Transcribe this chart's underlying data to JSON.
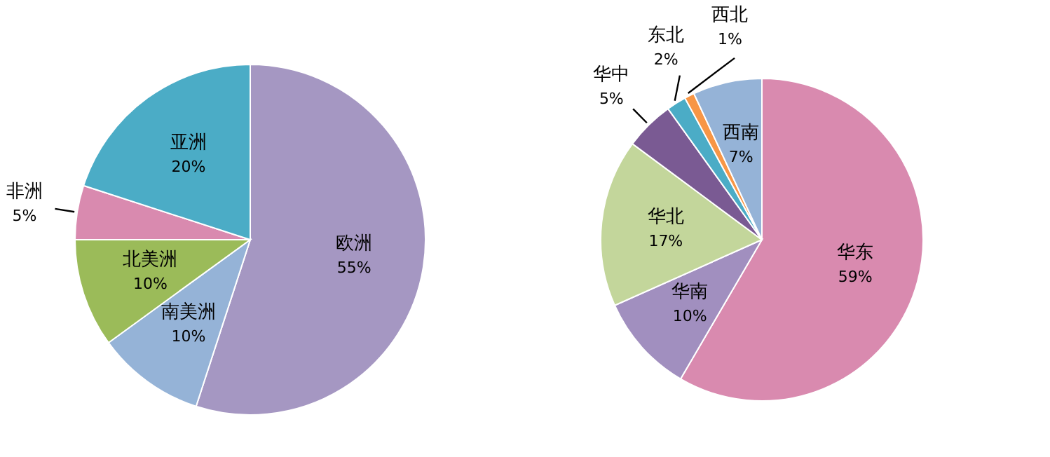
{
  "chart_data": [
    {
      "type": "pie",
      "categories": [
        "欧洲",
        "南美洲",
        "北美洲",
        "非洲",
        "亚洲"
      ],
      "values": [
        55,
        10,
        10,
        5,
        20
      ],
      "value_labels": [
        "55%",
        "10%",
        "10%",
        "5%",
        "20%"
      ],
      "colors": [
        "#a597c2",
        "#95b3d7",
        "#9bbb59",
        "#d98aaf",
        "#4bacc6"
      ]
    },
    {
      "type": "pie",
      "categories": [
        "华东",
        "华南",
        "华北",
        "华中",
        "东北",
        "西北",
        "西南"
      ],
      "values": [
        59,
        10,
        17,
        5,
        2,
        1,
        7
      ],
      "value_labels": [
        "59%",
        "10%",
        "17%",
        "5%",
        "2%",
        "1%",
        "7%"
      ],
      "colors": [
        "#d98aaf",
        "#a18fbf",
        "#c3d69b",
        "#7a5a93",
        "#4bacc6",
        "#f79646",
        "#95b3d7"
      ]
    }
  ]
}
